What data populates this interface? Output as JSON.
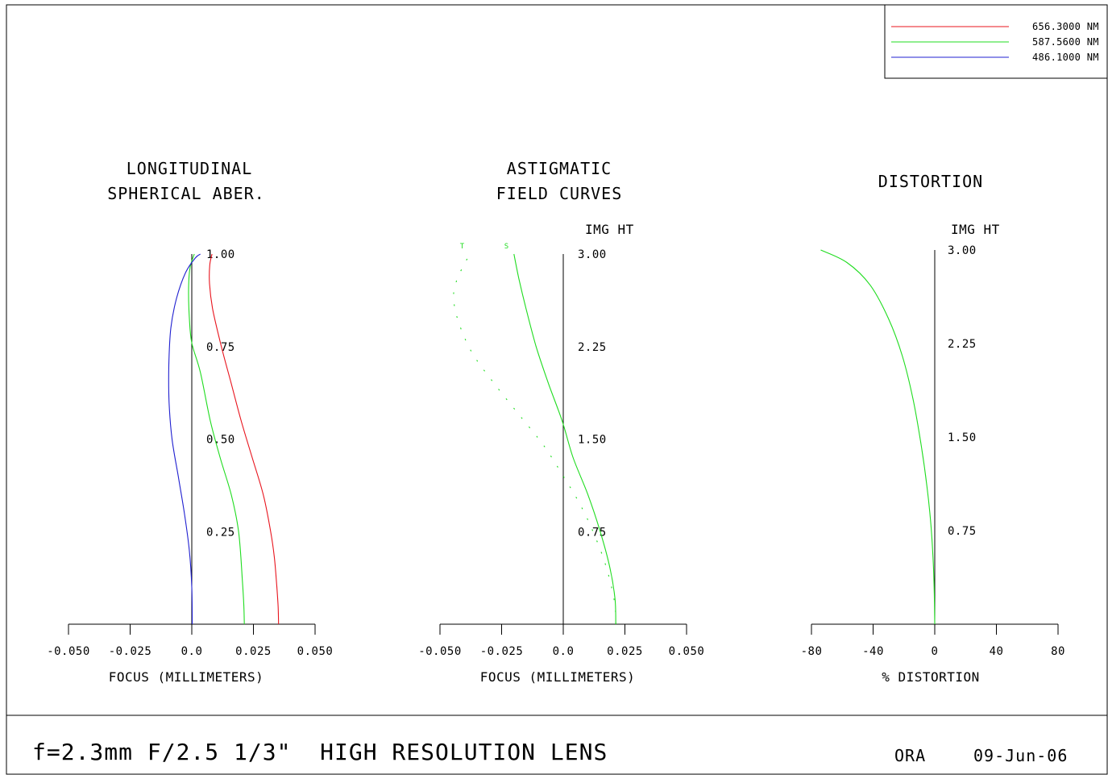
{
  "legend": [
    {
      "label": "656.3000 NM",
      "color": "#e8141d"
    },
    {
      "label": "587.5600 NM",
      "color": "#1fdc1f"
    },
    {
      "label": "486.1000 NM",
      "color": "#2020d0"
    }
  ],
  "footer": {
    "title": "f=2.3mm F/2.5 1/3\"  HIGH RESOLUTION LENS",
    "company": "ORA",
    "date": "09-Jun-06"
  },
  "chart_data": [
    {
      "type": "line",
      "title": "LONGITUDINAL\nSPHERICAL ABER.",
      "xlabel": "FOCUS (MILLIMETERS)",
      "ylabel": "",
      "xlim": [
        -0.05,
        0.05
      ],
      "ylim": [
        0,
        1
      ],
      "x_ticks": [
        "-0.050",
        "-0.025",
        "0.0",
        "0.025",
        "0.050"
      ],
      "y_ticks": [
        "0.25",
        "0.50",
        "0.75",
        "1.00"
      ],
      "series": [
        {
          "name": "656.3000 NM",
          "color": "#e8141d",
          "points": [
            [
              0.0352,
              0
            ],
            [
              0.035,
              0.05
            ],
            [
              0.0345,
              0.1
            ],
            [
              0.0335,
              0.18
            ],
            [
              0.032,
              0.25
            ],
            [
              0.029,
              0.35
            ],
            [
              0.0245,
              0.45
            ],
            [
              0.02,
              0.55
            ],
            [
              0.016,
              0.65
            ],
            [
              0.012,
              0.75
            ],
            [
              0.0085,
              0.85
            ],
            [
              0.0072,
              0.92
            ],
            [
              0.0073,
              0.97
            ],
            [
              0.0082,
              1.0
            ]
          ]
        },
        {
          "name": "587.5600 NM",
          "color": "#1fdc1f",
          "points": [
            [
              0.0213,
              0
            ],
            [
              0.0211,
              0.05
            ],
            [
              0.0205,
              0.12
            ],
            [
              0.019,
              0.25
            ],
            [
              0.016,
              0.35
            ],
            [
              0.0115,
              0.45
            ],
            [
              0.0075,
              0.55
            ],
            [
              0.0035,
              0.68
            ],
            [
              0.0,
              0.76
            ],
            [
              -0.001,
              0.83
            ],
            [
              -0.0013,
              0.9
            ],
            [
              -0.0008,
              0.96
            ],
            [
              0.001,
              1.0
            ]
          ]
        },
        {
          "name": "486.1000 NM",
          "color": "#2020d0",
          "points": [
            [
              0.0002,
              0
            ],
            [
              0.0,
              0.1
            ],
            [
              -0.001,
              0.2
            ],
            [
              -0.003,
              0.3
            ],
            [
              -0.0055,
              0.4
            ],
            [
              -0.008,
              0.5
            ],
            [
              -0.0092,
              0.6
            ],
            [
              -0.0093,
              0.7
            ],
            [
              -0.0085,
              0.8
            ],
            [
              -0.0062,
              0.88
            ],
            [
              -0.0025,
              0.95
            ],
            [
              0.0015,
              0.99
            ],
            [
              0.0035,
              1.0
            ]
          ]
        }
      ]
    },
    {
      "type": "line",
      "title": "ASTIGMATIC\nFIELD CURVES",
      "xlabel": "FOCUS (MILLIMETERS)",
      "ylabel": "IMG HT",
      "xlim": [
        -0.05,
        0.05
      ],
      "ylim": [
        0,
        3
      ],
      "x_ticks": [
        "-0.050",
        "-0.025",
        "0.0",
        "0.025",
        "0.050"
      ],
      "y_ticks": [
        "0.75",
        "1.50",
        "2.25",
        "3.00"
      ],
      "curve_markers": [
        "T",
        "S"
      ],
      "series": [
        {
          "name": "T",
          "style": "dashed",
          "color": "#1fdc1f",
          "points": [
            [
              0.0213,
              0
            ],
            [
              0.021,
              0.15
            ],
            [
              0.019,
              0.35
            ],
            [
              0.016,
              0.55
            ],
            [
              0.011,
              0.8
            ],
            [
              0.006,
              1.0
            ],
            [
              0.0,
              1.2
            ],
            [
              -0.008,
              1.45
            ],
            [
              -0.018,
              1.7
            ],
            [
              -0.028,
              1.95
            ],
            [
              -0.037,
              2.2
            ],
            [
              -0.0425,
              2.45
            ],
            [
              -0.0445,
              2.65
            ],
            [
              -0.043,
              2.8
            ],
            [
              -0.04,
              2.92
            ],
            [
              -0.038,
              3.0
            ]
          ]
        },
        {
          "name": "S",
          "style": "solid",
          "color": "#1fdc1f",
          "points": [
            [
              0.0213,
              0
            ],
            [
              0.021,
              0.2
            ],
            [
              0.019,
              0.45
            ],
            [
              0.015,
              0.75
            ],
            [
              0.01,
              1.05
            ],
            [
              0.004,
              1.35
            ],
            [
              -0.0005,
              1.65
            ],
            [
              -0.006,
              1.95
            ],
            [
              -0.011,
              2.25
            ],
            [
              -0.015,
              2.55
            ],
            [
              -0.018,
              2.8
            ],
            [
              -0.02,
              3.0
            ]
          ]
        }
      ]
    },
    {
      "type": "line",
      "title": "DISTORTION",
      "xlabel": "% DISTORTION",
      "ylabel": "IMG HT",
      "xlim": [
        -80,
        80
      ],
      "ylim": [
        0,
        3
      ],
      "x_ticks": [
        "-80",
        "-40",
        "0",
        "40",
        "80"
      ],
      "y_ticks": [
        "0.75",
        "1.50",
        "2.25",
        "3.00"
      ],
      "series": [
        {
          "name": "587.5600 NM",
          "color": "#1fdc1f",
          "points": [
            [
              0,
              0
            ],
            [
              -0.3,
              0.25
            ],
            [
              -1,
              0.5
            ],
            [
              -2.5,
              0.8
            ],
            [
              -5,
              1.1
            ],
            [
              -9,
              1.45
            ],
            [
              -14,
              1.8
            ],
            [
              -21,
              2.15
            ],
            [
              -30,
              2.45
            ],
            [
              -42,
              2.72
            ],
            [
              -57,
              2.9
            ],
            [
              -74,
              3.0
            ]
          ]
        }
      ]
    }
  ]
}
